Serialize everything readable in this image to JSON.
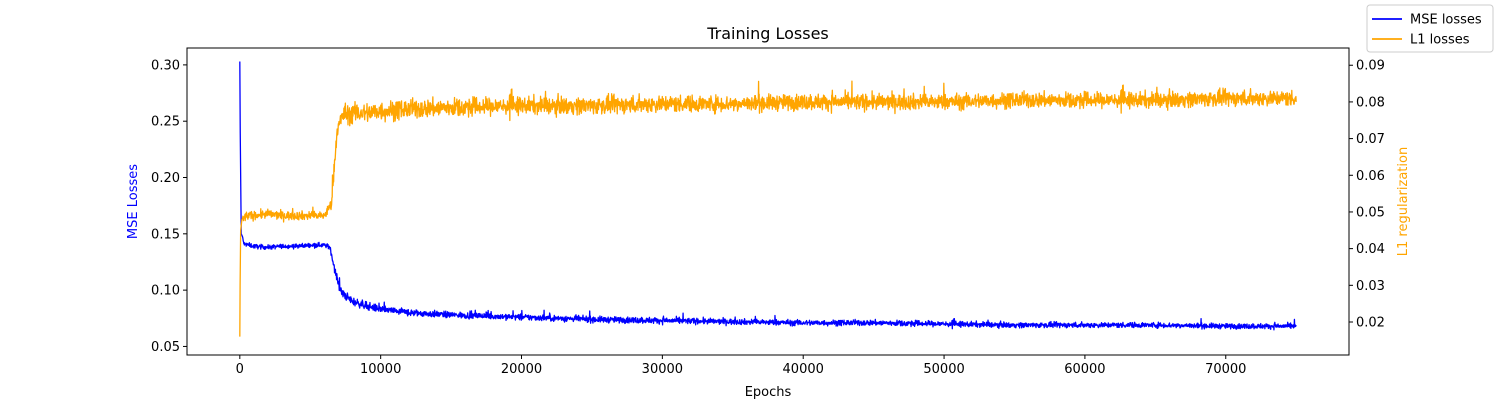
{
  "chart_data": {
    "type": "line",
    "title": "Training Losses",
    "xlabel": "Epochs",
    "ylabel_left": "MSE Losses",
    "ylabel_right": "L1 regularization",
    "xlim": [
      -3750,
      78750
    ],
    "ylim_left": [
      0.0424,
      0.315
    ],
    "ylim_right": [
      0.011,
      0.0947
    ],
    "x_ticks": [
      0,
      10000,
      20000,
      30000,
      40000,
      50000,
      60000,
      70000
    ],
    "x_tick_labels": [
      "0",
      "10000",
      "20000",
      "30000",
      "40000",
      "50000",
      "60000",
      "70000"
    ],
    "y_left_ticks": [
      0.05,
      0.1,
      0.15,
      0.2,
      0.25,
      0.3
    ],
    "y_left_tick_labels": [
      "0.05",
      "0.10",
      "0.15",
      "0.20",
      "0.25",
      "0.30"
    ],
    "y_right_ticks": [
      0.02,
      0.03,
      0.04,
      0.05,
      0.06,
      0.07,
      0.08,
      0.09
    ],
    "y_right_tick_labels": [
      "0.02",
      "0.03",
      "0.04",
      "0.05",
      "0.06",
      "0.07",
      "0.08",
      "0.09"
    ],
    "grid": false,
    "legend_placement": "top-right (outside plot)",
    "series": [
      {
        "name": "MSE losses",
        "axis": "left",
        "color": "#0000ff",
        "x": [
          0,
          30,
          100,
          300,
          1000,
          2000,
          3000,
          4000,
          5000,
          6000,
          6400,
          6800,
          7200,
          8000,
          9000,
          10000,
          12000,
          15000,
          20000,
          25000,
          30000,
          35000,
          40000,
          45000,
          50000,
          55000,
          60000,
          65000,
          70000,
          75000
        ],
        "y": [
          0.303,
          0.24,
          0.15,
          0.141,
          0.139,
          0.138,
          0.139,
          0.139,
          0.14,
          0.14,
          0.138,
          0.115,
          0.098,
          0.09,
          0.086,
          0.083,
          0.08,
          0.078,
          0.076,
          0.074,
          0.073,
          0.072,
          0.071,
          0.071,
          0.07,
          0.069,
          0.069,
          0.069,
          0.068,
          0.068
        ],
        "noise": [
          0.0,
          0.0,
          0.006,
          0.0025,
          0.0025,
          0.0025,
          0.0025,
          0.0025,
          0.0025,
          0.0025,
          0.003,
          0.005,
          0.005,
          0.0045,
          0.0045,
          0.004,
          0.004,
          0.0035,
          0.0035,
          0.0035,
          0.0035,
          0.0032,
          0.0032,
          0.0032,
          0.0032,
          0.003,
          0.003,
          0.003,
          0.003,
          0.003
        ]
      },
      {
        "name": "L1 losses",
        "axis": "right",
        "color": "#ffa500",
        "x": [
          0,
          20,
          60,
          150,
          500,
          1000,
          2000,
          3000,
          4000,
          5000,
          6000,
          6500,
          6900,
          7300,
          8000,
          9000,
          10000,
          12000,
          15000,
          20000,
          25000,
          30000,
          35000,
          40000,
          45000,
          50000,
          55000,
          60000,
          65000,
          70000,
          75000
        ],
        "y": [
          0.016,
          0.03,
          0.045,
          0.048,
          0.049,
          0.049,
          0.0495,
          0.049,
          0.049,
          0.049,
          0.049,
          0.052,
          0.072,
          0.0765,
          0.077,
          0.077,
          0.0775,
          0.078,
          0.0785,
          0.079,
          0.079,
          0.0795,
          0.0795,
          0.08,
          0.08,
          0.08,
          0.0805,
          0.0805,
          0.0805,
          0.081,
          0.081
        ],
        "noise": [
          0.0,
          0.0,
          0.002,
          0.0015,
          0.0015,
          0.0015,
          0.0015,
          0.0015,
          0.0015,
          0.0015,
          0.0015,
          0.002,
          0.003,
          0.0035,
          0.0035,
          0.0035,
          0.0035,
          0.0033,
          0.0032,
          0.003,
          0.003,
          0.003,
          0.0028,
          0.0028,
          0.0028,
          0.0027,
          0.0027,
          0.0027,
          0.0027,
          0.0027,
          0.0027
        ]
      }
    ]
  }
}
